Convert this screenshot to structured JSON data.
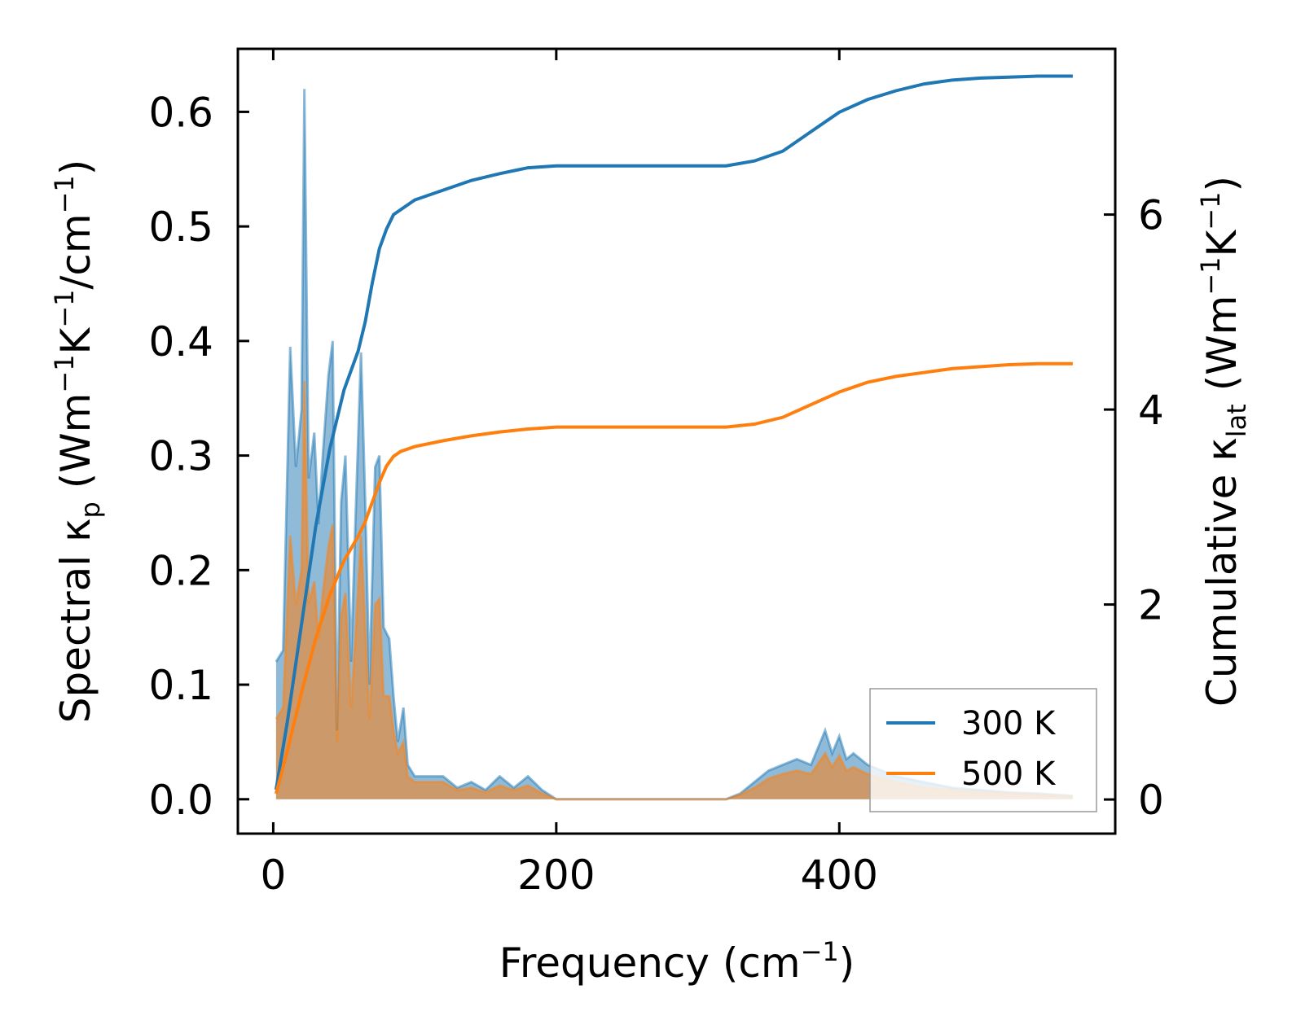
{
  "chart_data": {
    "type": "line",
    "xlabel": "Frequency (cm",
    "xlabel_sup": "−1",
    "xlabel_end": ")",
    "ylabel_left_parts": [
      "Spectral κ",
      "p",
      " (Wm",
      "−1",
      "K",
      "−1",
      "/cm",
      "−1",
      ")"
    ],
    "ylabel_right_parts": [
      "Cumulative κ",
      "lat",
      " (Wm",
      "−1",
      "K",
      "−1",
      ")"
    ],
    "xlim": [
      -25,
      595
    ],
    "ylim_left": [
      -0.03,
      0.655
    ],
    "ylim_right": [
      -0.35,
      7.7
    ],
    "x_ticks": [
      0,
      200,
      400
    ],
    "x_tick_labels": [
      "0",
      "200",
      "400"
    ],
    "y_left_ticks": [
      0.0,
      0.1,
      0.2,
      0.3,
      0.4,
      0.5,
      0.6
    ],
    "y_left_tick_labels": [
      "0.0",
      "0.1",
      "0.2",
      "0.3",
      "0.4",
      "0.5",
      "0.6"
    ],
    "y_right_ticks": [
      0,
      2,
      4,
      6
    ],
    "y_right_tick_labels": [
      "0",
      "2",
      "4",
      "6"
    ],
    "legend": {
      "position": "lower-right",
      "entries": [
        {
          "label": "300 K",
          "color": "#1f77b4"
        },
        {
          "label": "500 K",
          "color": "#ff7f0e"
        }
      ]
    },
    "colors": {
      "series_300K": "#1f77b4",
      "series_500K": "#ff7f0e"
    },
    "series": [
      {
        "name": "300 K",
        "spectral_x": [
          2,
          7,
          12,
          16,
          20,
          22,
          25,
          29,
          32,
          35,
          39,
          42,
          45,
          48,
          51,
          55,
          58,
          62,
          65,
          68,
          72,
          75,
          78,
          82,
          85,
          88,
          92,
          95,
          100,
          110,
          120,
          130,
          140,
          150,
          160,
          170,
          180,
          190,
          200,
          220,
          250,
          280,
          300,
          320,
          330,
          340,
          350,
          360,
          370,
          380,
          390,
          395,
          400,
          405,
          410,
          420,
          430,
          440,
          460,
          480,
          500,
          520,
          540,
          565
        ],
        "spectral_y": [
          0.12,
          0.13,
          0.395,
          0.29,
          0.34,
          0.62,
          0.28,
          0.32,
          0.24,
          0.3,
          0.37,
          0.4,
          0.06,
          0.26,
          0.3,
          0.12,
          0.24,
          0.39,
          0.26,
          0.1,
          0.29,
          0.3,
          0.15,
          0.14,
          0.09,
          0.05,
          0.08,
          0.03,
          0.02,
          0.02,
          0.02,
          0.01,
          0.015,
          0.008,
          0.02,
          0.01,
          0.02,
          0.008,
          0.0,
          0.0,
          0.0,
          0.0,
          0.0,
          0.0,
          0.005,
          0.015,
          0.025,
          0.03,
          0.035,
          0.03,
          0.06,
          0.04,
          0.055,
          0.035,
          0.04,
          0.03,
          0.025,
          0.02,
          0.015,
          0.01,
          0.008,
          0.006,
          0.005,
          0.003
        ],
        "cumulative_x": [
          2,
          10,
          20,
          30,
          40,
          50,
          60,
          65,
          70,
          75,
          80,
          85,
          90,
          100,
          120,
          140,
          160,
          180,
          200,
          250,
          300,
          320,
          340,
          360,
          380,
          400,
          420,
          440,
          460,
          480,
          500,
          520,
          540,
          565
        ],
        "cumulative_y": [
          0.1,
          0.8,
          1.8,
          2.8,
          3.6,
          4.2,
          4.6,
          4.9,
          5.3,
          5.65,
          5.85,
          6.0,
          6.05,
          6.15,
          6.25,
          6.35,
          6.42,
          6.48,
          6.5,
          6.5,
          6.5,
          6.5,
          6.55,
          6.65,
          6.85,
          7.05,
          7.18,
          7.27,
          7.34,
          7.38,
          7.4,
          7.41,
          7.42,
          7.42
        ]
      },
      {
        "name": "500 K",
        "spectral_x": [
          2,
          7,
          12,
          16,
          20,
          22,
          25,
          29,
          32,
          35,
          39,
          42,
          45,
          48,
          51,
          55,
          58,
          62,
          65,
          68,
          72,
          75,
          78,
          82,
          85,
          88,
          92,
          95,
          100,
          110,
          120,
          130,
          140,
          150,
          160,
          170,
          180,
          190,
          200,
          220,
          250,
          280,
          300,
          320,
          330,
          340,
          350,
          360,
          370,
          380,
          390,
          395,
          400,
          405,
          410,
          420,
          430,
          440,
          460,
          480,
          500,
          520,
          540,
          565
        ],
        "spectral_y": [
          0.07,
          0.08,
          0.23,
          0.17,
          0.2,
          0.365,
          0.17,
          0.19,
          0.14,
          0.18,
          0.22,
          0.24,
          0.05,
          0.16,
          0.18,
          0.08,
          0.14,
          0.23,
          0.15,
          0.07,
          0.17,
          0.175,
          0.09,
          0.09,
          0.06,
          0.04,
          0.05,
          0.02,
          0.015,
          0.015,
          0.015,
          0.008,
          0.01,
          0.006,
          0.012,
          0.008,
          0.012,
          0.005,
          0.0,
          0.0,
          0.0,
          0.0,
          0.0,
          0.0,
          0.004,
          0.01,
          0.018,
          0.022,
          0.025,
          0.022,
          0.04,
          0.028,
          0.038,
          0.025,
          0.028,
          0.022,
          0.018,
          0.015,
          0.01,
          0.008,
          0.006,
          0.005,
          0.004,
          0.002
        ],
        "cumulative_x": [
          2,
          10,
          20,
          30,
          40,
          50,
          60,
          65,
          70,
          75,
          80,
          85,
          90,
          100,
          120,
          140,
          160,
          180,
          200,
          250,
          300,
          320,
          340,
          360,
          380,
          400,
          420,
          440,
          460,
          480,
          500,
          520,
          540,
          565
        ],
        "cumulative_y": [
          0.06,
          0.5,
          1.1,
          1.65,
          2.1,
          2.45,
          2.7,
          2.85,
          3.05,
          3.25,
          3.42,
          3.52,
          3.57,
          3.62,
          3.68,
          3.73,
          3.77,
          3.8,
          3.82,
          3.82,
          3.82,
          3.82,
          3.85,
          3.92,
          4.05,
          4.18,
          4.28,
          4.34,
          4.38,
          4.42,
          4.44,
          4.46,
          4.47,
          4.47
        ]
      }
    ]
  }
}
